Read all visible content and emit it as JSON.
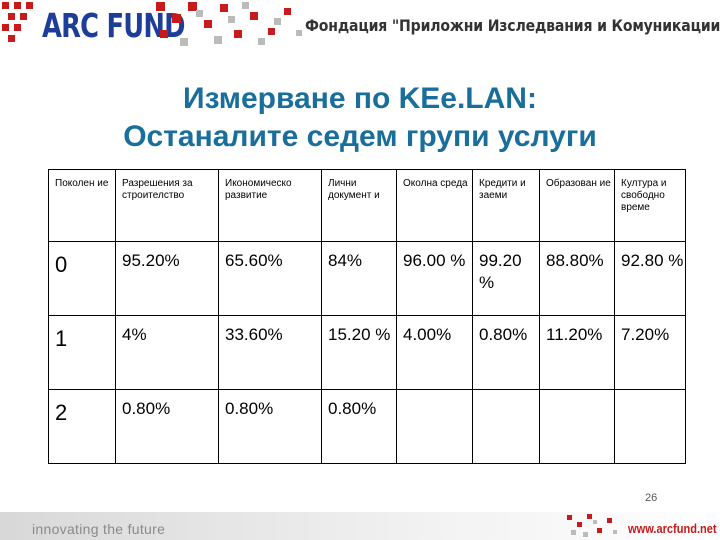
{
  "header": {
    "logo_text": "ARC FUND",
    "org_name": "Фондация \"Приложни Изследвания и Комуникации\""
  },
  "slide": {
    "title_line1": "Измерване по KEe.LAN:",
    "title_line2": "Останалите седем групи услуги",
    "page_number": "26"
  },
  "table": {
    "headers": [
      "Поколен ие",
      "Разрешения за строителство",
      "Икономическо развитие",
      "Лични документ и",
      "Околна среда",
      "Кредити и заеми",
      "Образован ие",
      "Култура и свободно време"
    ],
    "rows": [
      [
        "0",
        "95.20%",
        "65.60%",
        "84%",
        "96.00 %",
        "99.20 %",
        "88.80%",
        "92.80 %"
      ],
      [
        "1",
        "4%",
        "33.60%",
        "15.20 %",
        "4.00%",
        "0.80%",
        "11.20%",
        "7.20%"
      ],
      [
        "2",
        "0.80%",
        "0.80%",
        "0.80%",
        "",
        "",
        "",
        ""
      ]
    ]
  },
  "footer": {
    "tagline": "innovating the future",
    "website": "www.arcfund.net"
  },
  "colors": {
    "logo_blue": "#1c3d98",
    "accent_red": "#c71b1b",
    "title_blue": "#1a6e9c"
  }
}
